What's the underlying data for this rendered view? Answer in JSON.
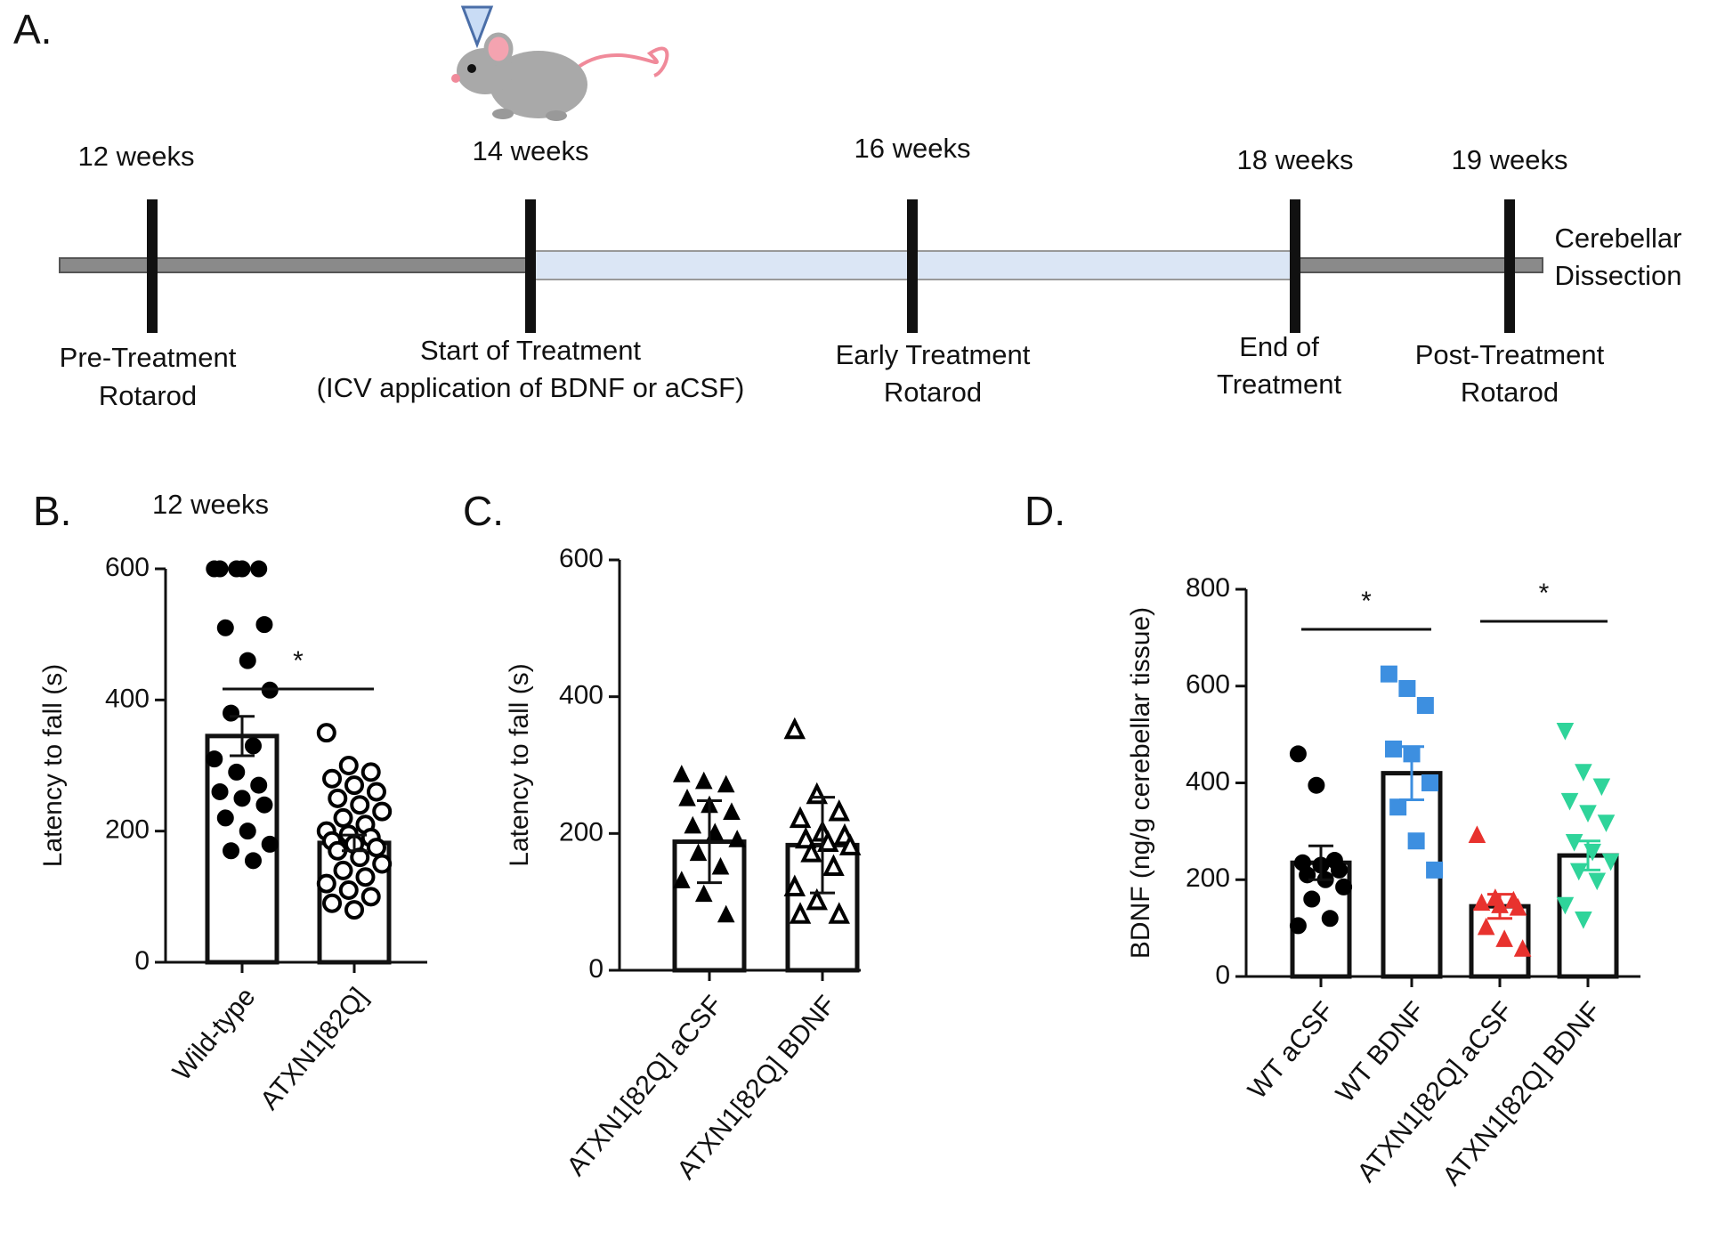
{
  "panel_labels": [
    "A.",
    "B.",
    "C.",
    "D."
  ],
  "timeline": {
    "milestones": [
      {
        "time": "12 weeks",
        "below": [
          "Pre-Treatment",
          "Rotarod"
        ]
      },
      {
        "time": "14 weeks",
        "below": [
          "Start of Treatment",
          "(ICV application of BDNF or aCSF)"
        ]
      },
      {
        "time": "16 weeks",
        "below": [
          "Early Treatment",
          "Rotarod"
        ]
      },
      {
        "time": "18 weeks",
        "below": [
          "End of",
          "Treatment"
        ]
      },
      {
        "time": "19 weeks",
        "below": [
          "Post-Treatment",
          "Rotarod"
        ]
      }
    ],
    "end_label": [
      "Cerebellar",
      "Dissection"
    ]
  },
  "chart_data": [
    {
      "type": "bar",
      "subtitle": "12 weeks",
      "ylabel": "Latency to fall (s)",
      "categories": [
        "Wild-type",
        "ATXN1[82Q]"
      ],
      "values": [
        345,
        182
      ],
      "errors": [
        30,
        12
      ],
      "points": [
        [
          600,
          600,
          600,
          600,
          600,
          515,
          510,
          460,
          415,
          380,
          330,
          310,
          290,
          270,
          260,
          250,
          240,
          220,
          200,
          180,
          170,
          155
        ],
        [
          350,
          300,
          290,
          280,
          270,
          260,
          250,
          240,
          230,
          220,
          210,
          200,
          195,
          190,
          185,
          180,
          175,
          170,
          160,
          150,
          140,
          130,
          120,
          110,
          100,
          90,
          80
        ]
      ],
      "markers": [
        {
          "shape": "circle",
          "filled": true,
          "color": "#000000"
        },
        {
          "shape": "circle",
          "filled": false,
          "color": "#000000"
        }
      ],
      "ylim": [
        0,
        600
      ],
      "yticks": [
        0,
        200,
        400,
        600
      ],
      "significance": [
        {
          "label": "*",
          "between": [
            "Wild-type",
            "ATXN1[82Q]"
          ]
        }
      ]
    },
    {
      "type": "bar",
      "ylabel": "Latency to fall (s)",
      "categories": [
        "ATXN1[82Q] aCSF",
        "ATXN1[82Q] BDNF"
      ],
      "values": [
        188,
        183
      ],
      "errors": [
        60,
        70
      ],
      "points": [
        [
          285,
          275,
          270,
          250,
          240,
          230,
          210,
          200,
          190,
          170,
          150,
          130,
          110,
          80
        ],
        [
          350,
          255,
          230,
          220,
          200,
          195,
          190,
          185,
          180,
          170,
          150,
          120,
          100,
          80,
          80
        ]
      ],
      "markers": [
        {
          "shape": "triangle",
          "filled": true,
          "color": "#000000"
        },
        {
          "shape": "triangle",
          "filled": false,
          "color": "#000000"
        }
      ],
      "ylim": [
        0,
        600
      ],
      "yticks": [
        0,
        200,
        400,
        600
      ]
    },
    {
      "type": "bar",
      "ylabel": "BDNF (ng/g cerebellar tissue)",
      "categories": [
        "WT aCSF",
        "WT BDNF",
        "ATXN1[82Q] aCSF",
        "ATXN1[82Q] BDNF"
      ],
      "values": [
        235,
        420,
        145,
        250
      ],
      "errors": [
        35,
        55,
        25,
        30
      ],
      "points": [
        [
          460,
          395,
          240,
          235,
          230,
          220,
          210,
          200,
          185,
          160,
          120,
          105
        ],
        [
          625,
          595,
          560,
          470,
          460,
          400,
          350,
          280,
          220
        ],
        [
          290,
          160,
          155,
          150,
          145,
          140,
          100,
          75,
          55
        ],
        [
          510,
          425,
          395,
          365,
          340,
          320,
          280,
          260,
          240,
          220,
          200,
          150,
          120
        ]
      ],
      "markers": [
        {
          "shape": "circle",
          "filled": true,
          "color": "#000000"
        },
        {
          "shape": "square",
          "filled": true,
          "color": "#3d8fe0"
        },
        {
          "shape": "triangle",
          "filled": true,
          "color": "#e8322e"
        },
        {
          "shape": "triangle-down",
          "filled": true,
          "color": "#2fd49a"
        }
      ],
      "ylim": [
        0,
        800
      ],
      "yticks": [
        0,
        200,
        400,
        600,
        800
      ],
      "significance": [
        {
          "label": "*",
          "between": [
            "WT aCSF",
            "WT BDNF"
          ]
        },
        {
          "label": "*",
          "between": [
            "ATXN1[82Q] aCSF",
            "ATXN1[82Q] BDNF"
          ]
        }
      ]
    }
  ]
}
